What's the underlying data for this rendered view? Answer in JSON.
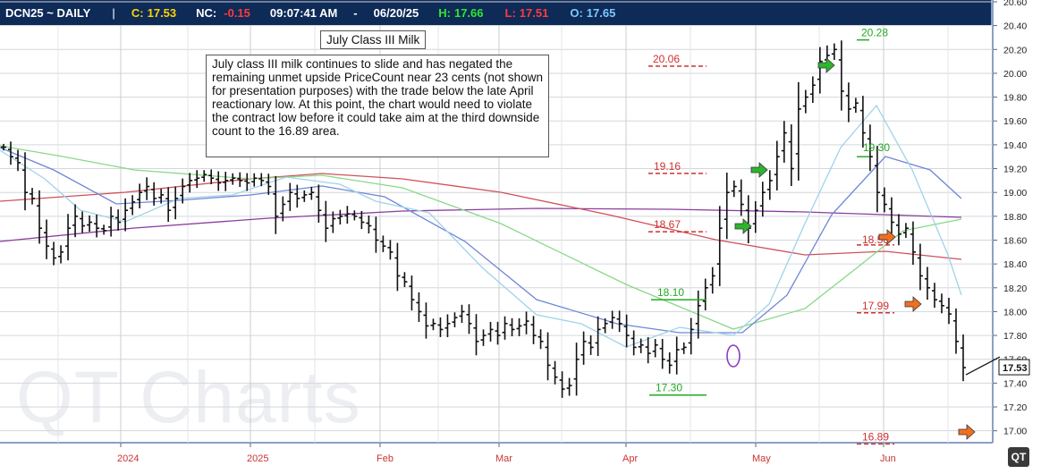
{
  "header": {
    "symbol": "DCN25 ~ DAILY",
    "sep": "|",
    "close_label": "C:",
    "close": "17.53",
    "net_label": "NC:",
    "net": "-0.15",
    "time": "09:07:41 AM",
    "dash": "-",
    "date": "06/20/25",
    "high_label": "H:",
    "high": "17.66",
    "low_label": "L:",
    "low": "17.51",
    "open_label": "O:",
    "open": "17.65"
  },
  "colors": {
    "header_bg": "#0e2a57",
    "close": "#ffd400",
    "net": "#ff3b3b",
    "high": "#2ee82e",
    "low": "#ff3b3b",
    "open": "#7ec8ff",
    "target_up": "#22aa22",
    "target_down": "#d03030",
    "arrow_green": "#2db52d",
    "arrow_orange": "#f07020",
    "ma_lightblue": "#9fd3ea",
    "ma_blue": "#6f86d6",
    "ma_green": "#88d988",
    "ma_red": "#d0505a",
    "ma_purple": "#8a3d9e"
  },
  "watermark": "QT Charts",
  "logo": "QT",
  "annotations": {
    "title": "July Class III Milk",
    "commentary": "July class III milk continues to slide and has negated the remaining unmet upside PriceCount near 23 cents (not shown for presentation purposes) with the trade below the late April reactionary low.  At this point, the chart would need to violate the contract low before it could take aim at the third downside count to the 16.89 area."
  },
  "chart_data": {
    "type": "ohlc",
    "title": "July Class III Milk",
    "ylim": [
      16.9,
      20.6
    ],
    "yticks": [
      "20.60",
      "20.40",
      "20.20",
      "20.00",
      "19.80",
      "19.60",
      "19.40",
      "19.20",
      "19.00",
      "18.80",
      "18.60",
      "18.40",
      "18.20",
      "18.00",
      "17.80",
      "17.60",
      "17.40",
      "17.20",
      "17.00"
    ],
    "xticks": [
      {
        "label": "2024",
        "color": "#cc3333"
      },
      {
        "label": "2025",
        "color": "#cc3333"
      },
      {
        "label": "Feb",
        "color": "#cc3333"
      },
      {
        "label": "Mar",
        "color": "#cc3333"
      },
      {
        "label": "Apr",
        "color": "#cc3333"
      },
      {
        "label": "May",
        "color": "#cc3333"
      },
      {
        "label": "Jun",
        "color": "#cc3333"
      }
    ],
    "last_price": "17.53",
    "upside_targets": [
      {
        "label": "18.10",
        "value": 18.1
      },
      {
        "label": "19.30",
        "value": 19.3
      },
      {
        "label": "20.28",
        "value": 20.28
      }
    ],
    "downside_targets": [
      {
        "label": "17.30",
        "value": 17.3
      },
      {
        "label": "20.06",
        "value": 20.06
      },
      {
        "label": "19.16",
        "value": 19.16
      },
      {
        "label": "18.67",
        "value": 18.67
      },
      {
        "label": "18.56",
        "value": 18.56
      },
      {
        "label": "17.99",
        "value": 17.99
      },
      {
        "label": "16.89",
        "value": 16.89
      }
    ],
    "circled_low": 17.55,
    "closes": [
      19.38,
      19.3,
      19.25,
      19.0,
      18.95,
      18.7,
      18.55,
      18.45,
      18.5,
      18.7,
      18.8,
      18.72,
      18.75,
      18.7,
      18.68,
      18.8,
      18.75,
      18.85,
      18.92,
      19.0,
      19.05,
      18.95,
      18.98,
      18.85,
      18.95,
      19.05,
      19.1,
      19.12,
      19.15,
      19.12,
      19.08,
      19.1,
      19.12,
      19.1,
      19.08,
      19.12,
      19.1,
      19.05,
      18.8,
      18.9,
      19.0,
      18.95,
      18.98,
      19.0,
      18.85,
      18.7,
      18.78,
      18.8,
      18.82,
      18.8,
      18.75,
      18.72,
      18.6,
      18.55,
      18.5,
      18.3,
      18.25,
      18.1,
      18.0,
      17.88,
      17.9,
      17.85,
      17.9,
      17.95,
      18.0,
      17.9,
      17.75,
      17.8,
      17.85,
      17.8,
      17.9,
      17.85,
      17.88,
      17.92,
      17.8,
      17.75,
      17.55,
      17.45,
      17.35,
      17.38,
      17.6,
      17.75,
      17.7,
      17.85,
      17.9,
      17.95,
      17.9,
      17.8,
      17.7,
      17.72,
      17.65,
      17.72,
      17.6,
      17.55,
      17.68,
      17.7,
      17.85,
      18.05,
      18.2,
      18.3,
      18.7,
      19.0,
      19.05,
      18.9,
      18.7,
      18.85,
      19.0,
      19.1,
      19.3,
      19.5,
      19.2,
      19.7,
      19.8,
      19.9,
      20.1,
      20.15,
      20.2,
      19.85,
      19.7,
      19.75,
      19.5,
      19.3,
      19.0,
      18.9,
      18.75,
      18.65,
      18.7,
      18.5,
      18.3,
      18.2,
      18.1,
      18.05,
      17.98,
      17.75,
      17.53
    ]
  }
}
